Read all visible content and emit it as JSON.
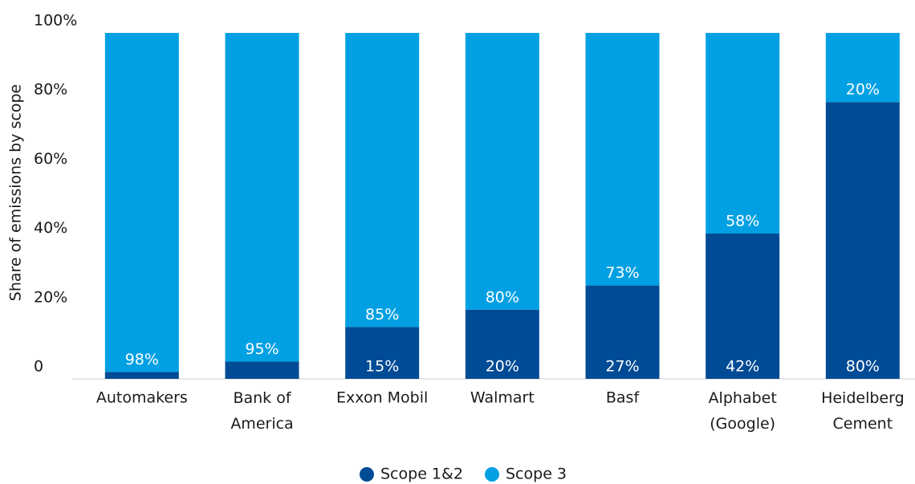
{
  "chart_data": {
    "type": "stacked_bar",
    "y_label": "Share of emissions by scope",
    "categories": [
      "Automakers",
      "Bank of America",
      "Exxon Mobil",
      "Walmart",
      "Basf",
      "Alphabet (Google)",
      "Heidelberg Cement"
    ],
    "series": [
      {
        "name": "Scope 1&2",
        "color": "#004b96",
        "values": [
          2,
          5,
          15,
          20,
          27,
          42,
          80
        ],
        "value_labels": [
          null,
          null,
          "15%",
          "20%",
          "27%",
          "42%",
          "80%"
        ]
      },
      {
        "name": "Scope 3",
        "color": "#00a0e3",
        "values": [
          98,
          95,
          85,
          80,
          73,
          58,
          20
        ],
        "value_labels": [
          "98%",
          "95%",
          "85%",
          "80%",
          "73%",
          "58%",
          "20%"
        ]
      }
    ],
    "ylim": [
      0,
      100
    ],
    "yticks": [
      0,
      {
        "value": 20,
        "label": "20%"
      },
      {
        "value": 40,
        "label": "40%"
      },
      {
        "value": 60,
        "label": "60%"
      },
      {
        "value": 80,
        "label": "80%"
      },
      {
        "value": 100,
        "label": "100%"
      }
    ],
    "grid": false,
    "legend": "bottom"
  }
}
